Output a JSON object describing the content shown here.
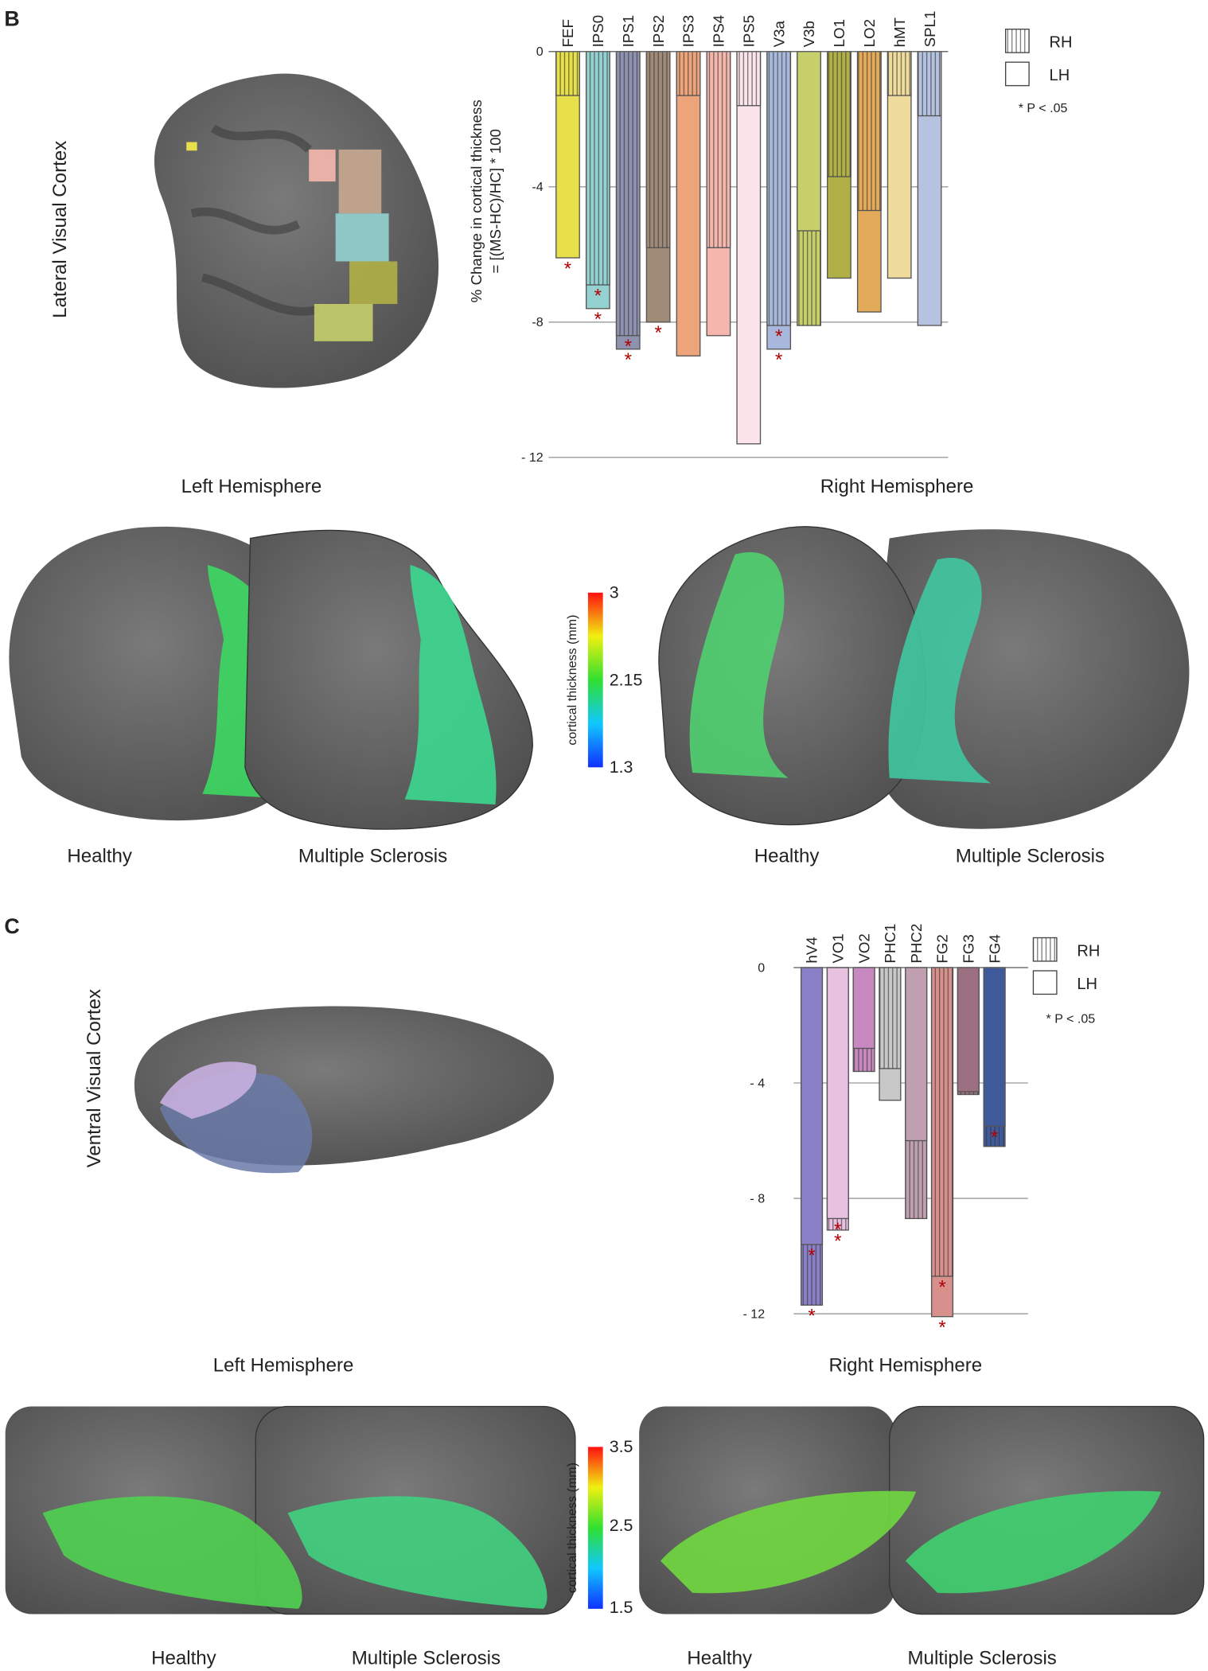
{
  "figure": {
    "panel_b": "B",
    "panel_c": "C",
    "lateral": "Lateral Visual Cortex",
    "ventral": "Ventral Visual Cortex",
    "left_b": "Left Hemisphere",
    "right_b": "Right Hemisphere",
    "left_c": "Left Hemisphere",
    "right_c": "Right Hemisphere",
    "conditions_b": [
      "Healthy",
      "Multiple Sclerosis",
      "Healthy",
      "Multiple Sclerosis"
    ],
    "conditions_c": [
      "Healthy",
      "Multiple Sclerosis",
      "Healthy",
      "Multiple Sclerosis"
    ],
    "colorbar_b": {
      "label": "cortical thickness (mm)",
      "ticks": [
        "3",
        "2.15",
        "1.3"
      ]
    },
    "colorbar_c": {
      "label": "cortical thickness (mm)",
      "ticks": [
        "3.5",
        "2.5",
        "1.5"
      ]
    }
  },
  "chart_data": [
    {
      "type": "bar",
      "ylabel": [
        "% Change in cortical thickness",
        "= [(MS-HC)/HC] * 100"
      ],
      "note": "* P < .05",
      "categories": [
        "FEF",
        "IPS0",
        "IPS1",
        "IPS2",
        "IPS3",
        "IPS4",
        "IPS5",
        "V3a",
        "V3b",
        "LO1",
        "LO2",
        "hMT",
        "SPL1"
      ],
      "colors": [
        "#e8e04a",
        "#93d2d0",
        "#8e92ae",
        "#a08a78",
        "#eea47a",
        "#f5b7ad",
        "#fbe4ea",
        "#a8b8dc",
        "#c7cf6a",
        "#b0b046",
        "#e3aa5a",
        "#efdb9c",
        "#b5c3e0"
      ],
      "series": [
        {
          "name": "RH",
          "marker": "*",
          "values": [
            -1.3,
            -6.9,
            -8.4,
            -5.8,
            -1.3,
            -5.8,
            -1.6,
            -8.1,
            -8.1,
            -3.7,
            -4.7,
            -1.3,
            -1.9
          ],
          "significant": [
            false,
            true,
            true,
            false,
            false,
            false,
            false,
            true,
            false,
            false,
            false,
            false,
            false
          ]
        },
        {
          "name": "LH",
          "marker": "*",
          "values": [
            -6.1,
            -7.6,
            -8.8,
            -8.0,
            -9.0,
            -8.4,
            -11.6,
            -8.8,
            -5.3,
            -6.7,
            -7.7,
            -6.7,
            -8.1
          ],
          "significant": [
            true,
            true,
            true,
            true,
            false,
            false,
            false,
            true,
            false,
            false,
            false,
            false,
            false
          ]
        }
      ],
      "ylim": [
        0,
        -12
      ],
      "yticks": [
        0,
        -4,
        -8,
        {
          "value": -12,
          "label": "- 12"
        }
      ],
      "grid": true
    },
    {
      "type": "bar",
      "note": "* P < .05",
      "categories": [
        "hV4",
        "VO1",
        "VO2",
        "PHC1",
        "PHC2",
        "FG2",
        "FG3",
        "FG4"
      ],
      "colors": [
        "#8a80c8",
        "#e8c0e0",
        "#c888c0",
        "#c8c8c8",
        "#c0a0b0",
        "#d8908c",
        "#9c7080",
        "#3f5a9a"
      ],
      "series": [
        {
          "name": "RH",
          "marker": "*",
          "values": [
            -11.7,
            -9.1,
            -3.6,
            -3.5,
            -8.7,
            -10.7,
            -4.4,
            -6.2
          ],
          "significant": [
            true,
            true,
            false,
            false,
            false,
            true,
            false,
            false
          ]
        },
        {
          "name": "LH",
          "marker": "*",
          "values": [
            -9.6,
            -8.7,
            -2.8,
            -4.6,
            -6.0,
            -12.1,
            -4.3,
            -5.5
          ],
          "significant": [
            true,
            true,
            false,
            false,
            false,
            true,
            false,
            true
          ]
        }
      ],
      "ylim": [
        0,
        -12
      ],
      "yticks": [
        0,
        {
          "value": -4,
          "label": "- 4"
        },
        {
          "value": -8,
          "label": "- 8"
        },
        {
          "value": -12,
          "label": "- 12"
        }
      ],
      "grid": true
    }
  ]
}
